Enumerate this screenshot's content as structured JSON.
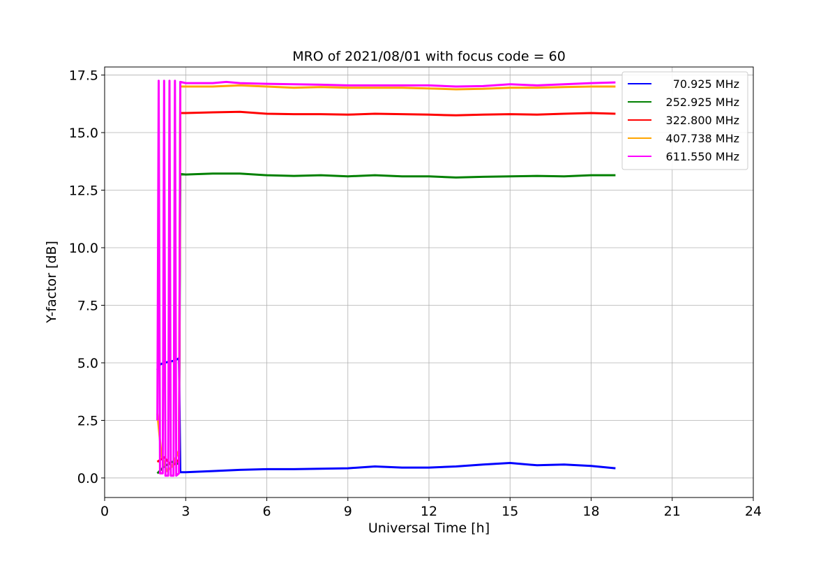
{
  "chart_data": {
    "type": "line",
    "title": "MRO of 2021/08/01 with focus code = 60",
    "xlabel": "Universal Time [h]",
    "ylabel": "Y-factor [dB]",
    "xlim": [
      0,
      24
    ],
    "ylim": [
      -0.85,
      17.85
    ],
    "xticks": [
      0,
      3,
      6,
      9,
      12,
      15,
      18,
      21,
      24
    ],
    "yticks": [
      0.0,
      2.5,
      5.0,
      7.5,
      10.0,
      12.5,
      15.0,
      17.5
    ],
    "xtick_labels": [
      "0",
      "3",
      "6",
      "9",
      "12",
      "15",
      "18",
      "21",
      "24"
    ],
    "ytick_labels": [
      "0.0",
      "2.5",
      "5.0",
      "7.5",
      "10.0",
      "12.5",
      "15.0",
      "17.5"
    ],
    "grid": true,
    "legend_position": "top-right",
    "series": [
      {
        "name": "70.925 MHz",
        "color": "#0000ff",
        "x": [
          1.95,
          2.0,
          2.2,
          2.4,
          2.6,
          2.75,
          2.8,
          3.0,
          4.0,
          5.0,
          6.0,
          7.0,
          8.0,
          9.0,
          10.0,
          11.0,
          12.0,
          13.0,
          14.0,
          15.0,
          16.0,
          17.0,
          18.0,
          18.9
        ],
        "values": [
          4.7,
          4.9,
          5.0,
          5.05,
          5.1,
          5.2,
          0.25,
          0.25,
          0.3,
          0.35,
          0.38,
          0.38,
          0.4,
          0.42,
          0.5,
          0.45,
          0.45,
          0.5,
          0.58,
          0.65,
          0.55,
          0.58,
          0.52,
          0.42
        ]
      },
      {
        "name": "252.925 MHz",
        "color": "#008000",
        "x": [
          1.95,
          2.2,
          2.5,
          2.75,
          2.8,
          3.0,
          4.0,
          5.0,
          6.0,
          7.0,
          8.0,
          9.0,
          10.0,
          11.0,
          12.0,
          13.0,
          14.0,
          15.0,
          16.0,
          17.0,
          18.0,
          18.9
        ],
        "values": [
          0.2,
          0.5,
          0.7,
          0.6,
          13.2,
          13.18,
          13.22,
          13.22,
          13.15,
          13.12,
          13.15,
          13.1,
          13.15,
          13.1,
          13.1,
          13.05,
          13.08,
          13.1,
          13.12,
          13.1,
          13.15,
          13.15
        ]
      },
      {
        "name": "322.800 MHz",
        "color": "#ff0000",
        "x": [
          1.95,
          2.2,
          2.5,
          2.75,
          2.8,
          3.0,
          4.0,
          5.0,
          6.0,
          7.0,
          8.0,
          9.0,
          10.0,
          11.0,
          12.0,
          13.0,
          14.0,
          15.0,
          16.0,
          17.0,
          18.0,
          18.9
        ],
        "values": [
          0.7,
          0.9,
          0.5,
          0.8,
          15.85,
          15.85,
          15.88,
          15.9,
          15.82,
          15.8,
          15.8,
          15.78,
          15.82,
          15.8,
          15.78,
          15.75,
          15.78,
          15.8,
          15.78,
          15.82,
          15.85,
          15.82
        ]
      },
      {
        "name": "407.738 MHz",
        "color": "#ffa500",
        "x": [
          1.95,
          2.1,
          2.3,
          2.5,
          2.75,
          2.8,
          3.0,
          4.0,
          5.0,
          6.0,
          7.0,
          8.0,
          9.0,
          10.0,
          11.0,
          12.0,
          13.0,
          14.0,
          15.0,
          16.0,
          17.0,
          18.0,
          18.9
        ],
        "values": [
          2.8,
          1.0,
          0.3,
          0.5,
          1.2,
          17.0,
          17.0,
          17.0,
          17.05,
          17.0,
          16.95,
          16.98,
          16.95,
          16.95,
          16.95,
          16.92,
          16.88,
          16.9,
          16.95,
          16.95,
          16.98,
          17.0,
          17.0
        ]
      },
      {
        "name": "611.550 MHz",
        "color": "#ff00ff",
        "x": [
          1.95,
          2.0,
          2.05,
          2.15,
          2.2,
          2.25,
          2.35,
          2.4,
          2.45,
          2.55,
          2.6,
          2.65,
          2.75,
          2.8,
          3.0,
          4.0,
          4.5,
          5.0,
          6.0,
          7.0,
          8.0,
          9.0,
          10.0,
          11.0,
          12.0,
          13.0,
          14.0,
          15.0,
          16.0,
          17.0,
          18.0,
          18.9
        ],
        "values": [
          2.5,
          17.25,
          0.2,
          0.2,
          17.25,
          0.1,
          0.1,
          17.25,
          0.1,
          0.1,
          17.25,
          0.1,
          0.2,
          17.2,
          17.15,
          17.15,
          17.2,
          17.15,
          17.12,
          17.1,
          17.08,
          17.05,
          17.05,
          17.05,
          17.05,
          17.0,
          17.02,
          17.1,
          17.05,
          17.1,
          17.15,
          17.18
        ]
      }
    ]
  }
}
